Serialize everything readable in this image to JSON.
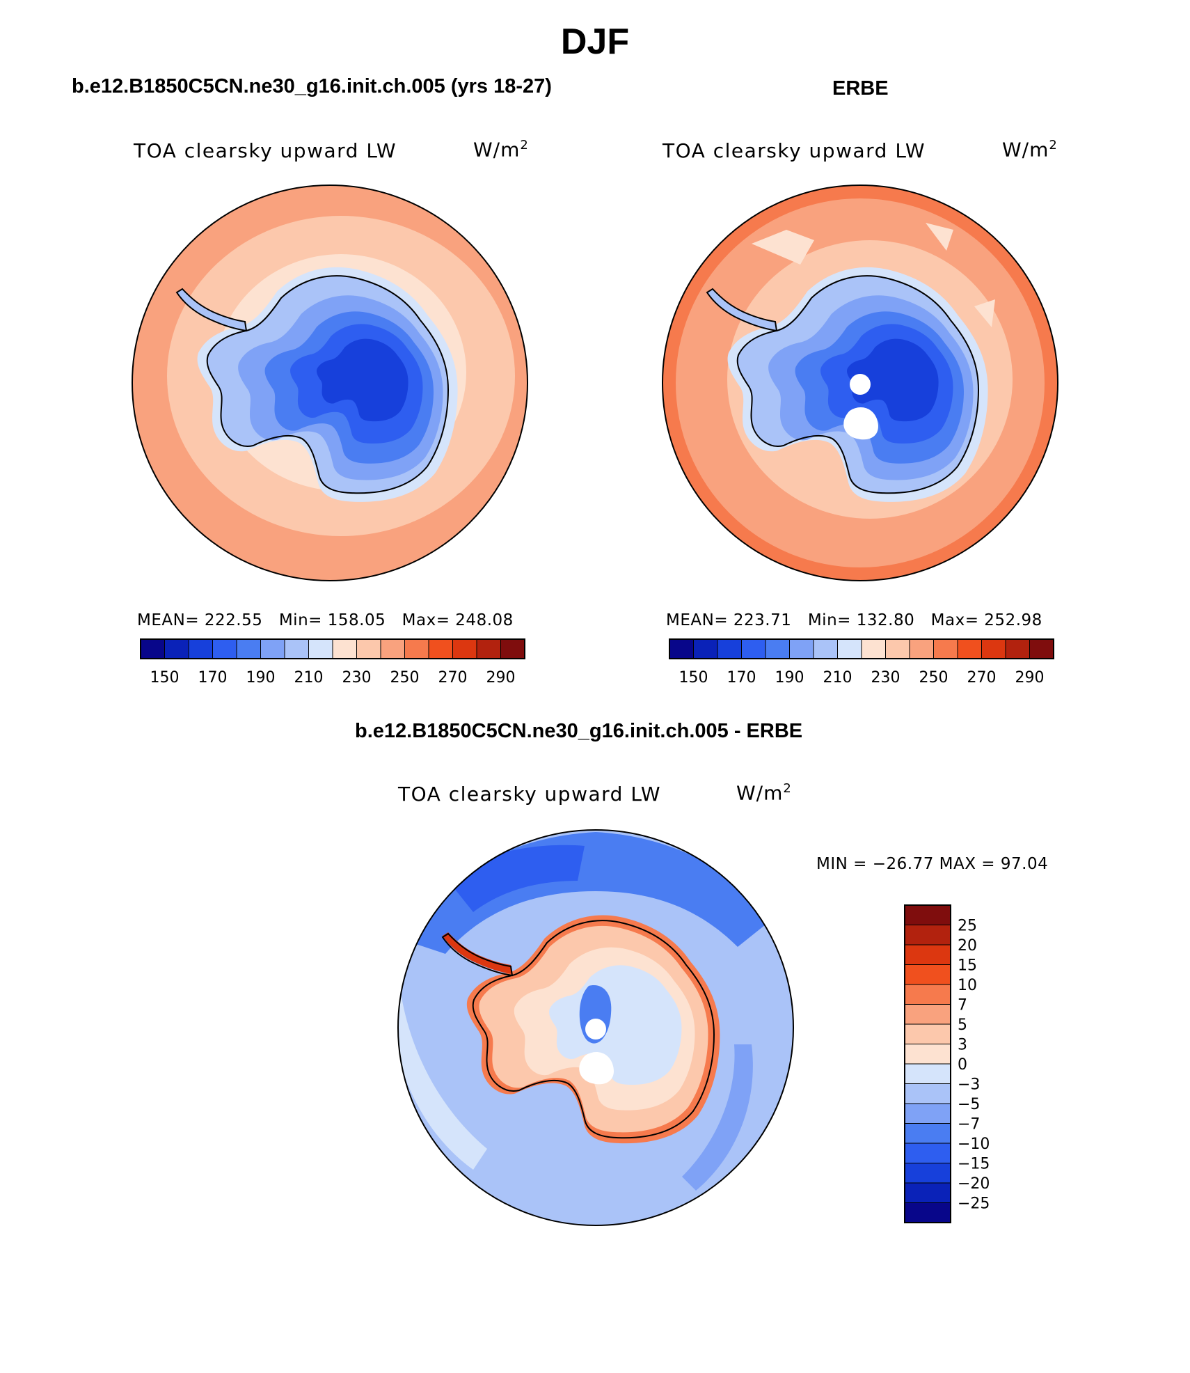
{
  "figure": {
    "title": "DJF"
  },
  "panels": [
    {
      "id": "model",
      "header": "b.e12.B1850C5CN.ne30_g16.init.ch.005 (yrs 18-27)",
      "variable": "TOA clearsky upward LW",
      "units": "W/m",
      "units_sup": "2",
      "stats": {
        "mean_label": "MEAN=",
        "mean": "222.55",
        "min_label": "Min=",
        "min": "158.05",
        "max_label": "Max=",
        "max": "248.08"
      }
    },
    {
      "id": "obs",
      "header": "ERBE",
      "variable": "TOA clearsky upward LW",
      "units": "W/m",
      "units_sup": "2",
      "stats": {
        "mean_label": "MEAN=",
        "mean": "223.71",
        "min_label": "Min=",
        "min": "132.80",
        "max_label": "Max=",
        "max": "252.98"
      }
    },
    {
      "id": "diff",
      "header": "b.e12.B1850C5CN.ne30_g16.init.ch.005 - ERBE",
      "variable": "TOA clearsky upward LW",
      "units": "W/m",
      "units_sup": "2",
      "stats_line": "MIN = −26.77  MAX =   97.04"
    }
  ],
  "colorbar_main": {
    "colors": [
      "#08068a",
      "#0a22b8",
      "#1740db",
      "#2e5ef0",
      "#4a7df2",
      "#7fa2f6",
      "#aac3f8",
      "#d5e4fb",
      "#fde2d1",
      "#fcc8ac",
      "#f9a27e",
      "#f67a4d",
      "#f0501e",
      "#dc3710",
      "#b2220e",
      "#7f0d0d"
    ],
    "labels": [
      "150",
      "170",
      "190",
      "210",
      "230",
      "250",
      "270",
      "290"
    ]
  },
  "colorbar_diff": {
    "colors": [
      "#7f0d0d",
      "#b2220e",
      "#dc3710",
      "#f0501e",
      "#f67a4d",
      "#f9a27e",
      "#fcc8ac",
      "#fde2d1",
      "#d5e4fb",
      "#aac3f8",
      "#7fa2f6",
      "#4a7df2",
      "#2e5ef0",
      "#1740db",
      "#0a22b8",
      "#08068a"
    ],
    "labels": [
      "25",
      "20",
      "15",
      "10",
      "7",
      "5",
      "3",
      "0",
      "−3",
      "−5",
      "−7",
      "−10",
      "−15",
      "−20",
      "−25"
    ]
  },
  "map_colors": {
    "antarctica_outline": "#000000"
  }
}
